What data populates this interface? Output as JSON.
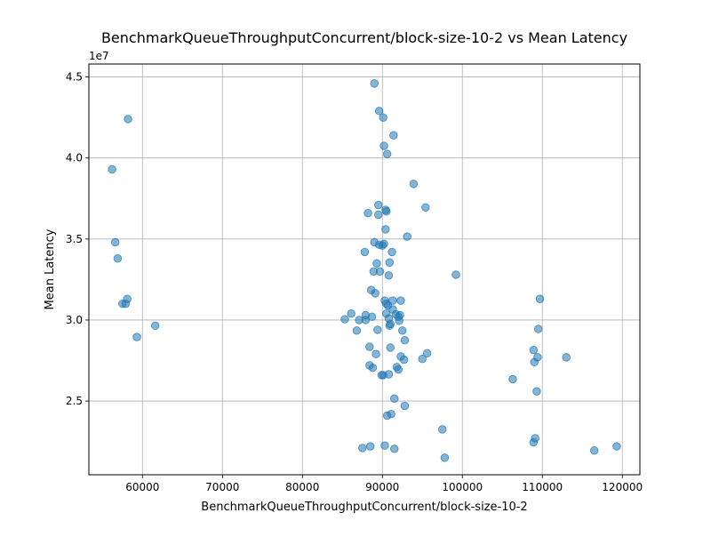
{
  "chart_data": {
    "type": "scatter",
    "title": "BenchmarkQueueThroughputConcurrent/block-size-10-2 vs Mean Latency",
    "xlabel": "BenchmarkQueueThroughputConcurrent/block-size-10-2",
    "ylabel": "Mean Latency",
    "y_offset_label": "1e7",
    "xlim": [
      53300,
      122200
    ],
    "ylim": [
      20450000,
      45800000
    ],
    "x_ticks": [
      60000,
      70000,
      80000,
      90000,
      100000,
      110000,
      120000
    ],
    "x_tick_labels": [
      "60000",
      "70000",
      "80000",
      "90000",
      "100000",
      "110000",
      "120000"
    ],
    "y_ticks": [
      25000000,
      30000000,
      35000000,
      40000000,
      45000000
    ],
    "y_tick_labels": [
      "2.5",
      "3.0",
      "3.5",
      "4.0",
      "4.5"
    ],
    "grid": true,
    "marker_color": "#1f77b4",
    "marker_alpha": 0.55,
    "points": [
      [
        56200,
        39300000
      ],
      [
        56600,
        34800000
      ],
      [
        56900,
        33800000
      ],
      [
        57500,
        31000000
      ],
      [
        57900,
        31000000
      ],
      [
        58100,
        31300000
      ],
      [
        58200,
        42400000
      ],
      [
        59300,
        28950000
      ],
      [
        61600,
        29650000
      ],
      [
        85300,
        30050000
      ],
      [
        86100,
        30400000
      ],
      [
        86800,
        29350000
      ],
      [
        87100,
        30000000
      ],
      [
        87500,
        22100000
      ],
      [
        87800,
        34200000
      ],
      [
        87900,
        30300000
      ],
      [
        87900,
        30000000
      ],
      [
        88200,
        36600000
      ],
      [
        88400,
        28350000
      ],
      [
        88400,
        27200000
      ],
      [
        88500,
        22200000
      ],
      [
        88600,
        31850000
      ],
      [
        88700,
        30200000
      ],
      [
        88800,
        27050000
      ],
      [
        88900,
        33000000
      ],
      [
        89000,
        44600000
      ],
      [
        89000,
        34800000
      ],
      [
        89100,
        31650000
      ],
      [
        89200,
        27900000
      ],
      [
        89300,
        33500000
      ],
      [
        89400,
        29400000
      ],
      [
        89500,
        37100000
      ],
      [
        89500,
        36500000
      ],
      [
        89600,
        34650000
      ],
      [
        89600,
        42900000
      ],
      [
        89700,
        33000000
      ],
      [
        89900,
        26600000
      ],
      [
        90000,
        34600000
      ],
      [
        90100,
        42500000
      ],
      [
        90100,
        26600000
      ],
      [
        90200,
        40750000
      ],
      [
        90200,
        34700000
      ],
      [
        90300,
        31200000
      ],
      [
        90300,
        22250000
      ],
      [
        90400,
        36800000
      ],
      [
        90400,
        35600000
      ],
      [
        90500,
        36700000
      ],
      [
        90500,
        31000000
      ],
      [
        90500,
        30400000
      ],
      [
        90600,
        40250000
      ],
      [
        90600,
        24100000
      ],
      [
        90700,
        30900000
      ],
      [
        90800,
        32750000
      ],
      [
        90800,
        30100000
      ],
      [
        90800,
        26650000
      ],
      [
        90900,
        33550000
      ],
      [
        90900,
        29650000
      ],
      [
        91000,
        28300000
      ],
      [
        91000,
        29750000
      ],
      [
        91100,
        24200000
      ],
      [
        91200,
        34200000
      ],
      [
        91300,
        30650000
      ],
      [
        91300,
        31200000
      ],
      [
        91400,
        41400000
      ],
      [
        91500,
        25150000
      ],
      [
        91500,
        22050000
      ],
      [
        91700,
        30350000
      ],
      [
        91800,
        27100000
      ],
      [
        92000,
        30200000
      ],
      [
        92000,
        26950000
      ],
      [
        92100,
        29950000
      ],
      [
        92200,
        30300000
      ],
      [
        92300,
        27750000
      ],
      [
        92300,
        31200000
      ],
      [
        92500,
        29350000
      ],
      [
        92700,
        27550000
      ],
      [
        92800,
        24700000
      ],
      [
        92800,
        28750000
      ],
      [
        93100,
        35150000
      ],
      [
        93900,
        38400000
      ],
      [
        95000,
        27600000
      ],
      [
        95400,
        36950000
      ],
      [
        95600,
        27950000
      ],
      [
        97500,
        23250000
      ],
      [
        97800,
        21500000
      ],
      [
        99200,
        32800000
      ],
      [
        106300,
        26350000
      ],
      [
        108900,
        22450000
      ],
      [
        108900,
        28150000
      ],
      [
        109000,
        27400000
      ],
      [
        109100,
        22700000
      ],
      [
        109300,
        25600000
      ],
      [
        109400,
        27700000
      ],
      [
        109500,
        29450000
      ],
      [
        109700,
        31300000
      ],
      [
        113000,
        27700000
      ],
      [
        116500,
        21950000
      ],
      [
        119300,
        22200000
      ]
    ]
  }
}
